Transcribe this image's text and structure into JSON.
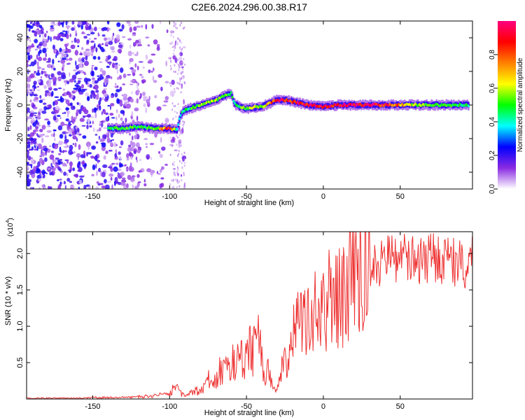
{
  "figure": {
    "title": "C2E6.2024.296.00.38.R17"
  },
  "chart_data": [
    {
      "type": "heatmap",
      "xlabel": "Height of straight line (km)",
      "ylabel": "Frequency (Hz)",
      "xlim": [
        -193,
        97
      ],
      "ylim": [
        -50,
        50
      ],
      "xticks": [
        -150,
        -100,
        -50,
        0,
        50
      ],
      "yticks": [
        -40,
        -20,
        0,
        20,
        40
      ],
      "colorbar": {
        "label": "Normalized spectral amplitude",
        "range": [
          0.0,
          1.0
        ],
        "ticks": [
          "0.0",
          "0.2",
          "0.4",
          "0.6",
          "0.8"
        ],
        "tick_values": [
          0.0,
          0.2,
          0.4,
          0.6,
          0.8
        ],
        "colors": [
          "#ffffff",
          "#8a2be2",
          "#0000ff",
          "#00ffff",
          "#00ff00",
          "#ffff00",
          "#ff8000",
          "#ff0000",
          "#ff0080"
        ]
      },
      "ridge": {
        "x": [
          -140,
          -130,
          -120,
          -110,
          -100,
          -95,
          -93,
          -90,
          -80,
          -70,
          -60,
          -58,
          -55,
          -50,
          -40,
          -30,
          -25,
          -20,
          -10,
          0,
          10,
          20,
          40,
          60,
          80,
          95
        ],
        "y": [
          -14,
          -14,
          -13,
          -14,
          -14,
          -15,
          -6,
          -3,
          0,
          3,
          7,
          1,
          -1,
          -2,
          -1,
          3,
          3,
          2,
          0,
          -1,
          0,
          0,
          0,
          0,
          0,
          0
        ],
        "amplitude": [
          0.45,
          0.5,
          0.5,
          0.5,
          0.9,
          0.4,
          0.4,
          0.45,
          0.55,
          0.55,
          0.5,
          0.45,
          0.5,
          0.55,
          0.6,
          0.85,
          0.9,
          0.9,
          0.95,
          0.9,
          0.95,
          0.95,
          0.9,
          0.55,
          0.5,
          0.45
        ]
      },
      "noise_region_x": [
        -193,
        -90
      ]
    },
    {
      "type": "line",
      "xlabel": "Height of straight line (km)",
      "ylabel": "SNR (10 * v/v)",
      "y_multiplier": "(x10",
      "y_multiplier_exp": "4",
      "y_multiplier_close": ")",
      "xlim": [
        -193,
        97
      ],
      "ylim": [
        0,
        23000
      ],
      "xticks": [
        -150,
        -100,
        -50,
        0,
        50
      ],
      "yticks": [
        5000,
        10000,
        15000,
        20000
      ],
      "ytick_labels": [
        "0.5",
        "1.0",
        "1.5",
        "2.0"
      ],
      "color": "#ee3333",
      "series": [
        {
          "x": [
            -193,
            -160,
            -130,
            -110,
            -100,
            -98,
            -95,
            -92,
            -88,
            -80,
            -75,
            -70,
            -65,
            -60,
            -55,
            -52,
            -50,
            -48,
            -45,
            -42,
            -40,
            -38,
            -36,
            -34,
            -32,
            -30,
            -28,
            -26,
            -24,
            -22,
            -20,
            -15,
            -10,
            -5,
            0,
            5,
            10,
            20,
            30,
            40,
            50,
            60,
            70,
            80,
            90,
            97
          ],
          "y": [
            100,
            150,
            200,
            400,
            800,
            1500,
            2000,
            600,
            800,
            1200,
            2500,
            3000,
            4500,
            5000,
            5200,
            5500,
            5000,
            6500,
            7000,
            8000,
            6000,
            3000,
            4500,
            2000,
            1500,
            800,
            3500,
            4200,
            5500,
            6000,
            9000,
            10500,
            12000,
            11500,
            13000,
            13500,
            14000,
            16000,
            18000,
            19000,
            19300,
            19000,
            19500,
            19000,
            18500,
            19000
          ]
        }
      ]
    }
  ]
}
